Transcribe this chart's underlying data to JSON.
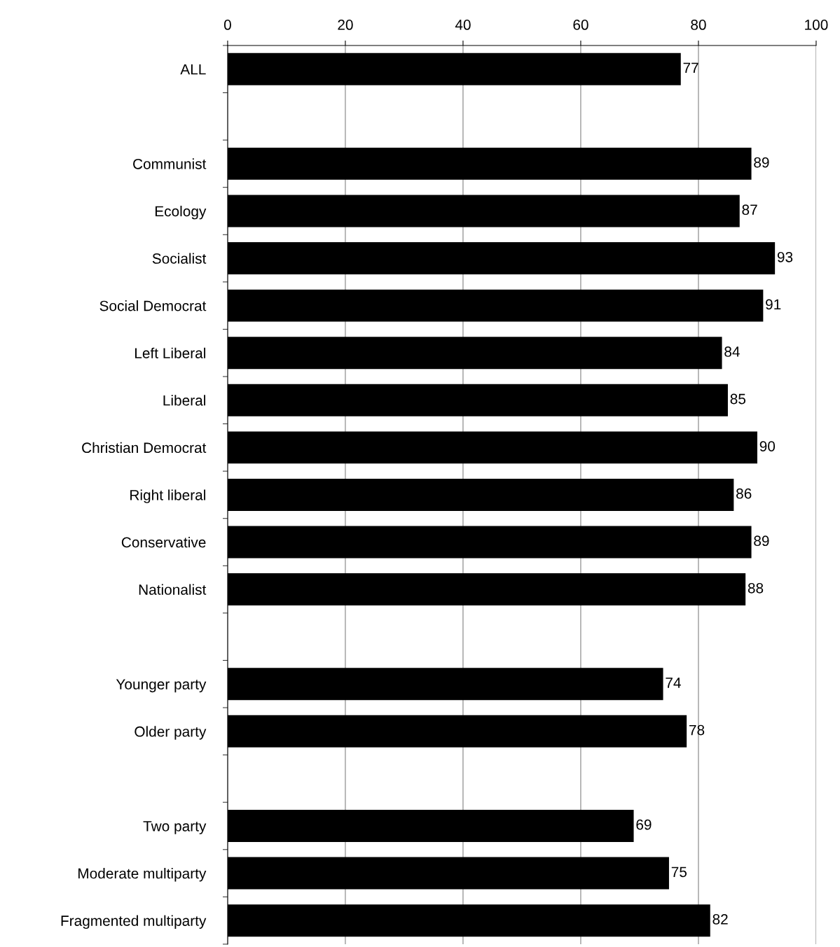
{
  "chart_data": {
    "type": "bar",
    "orientation": "horizontal",
    "categories": [
      "ALL",
      null,
      "Communist",
      "Ecology",
      "Socialist",
      "Social Democrat",
      "Left Liberal",
      "Liberal",
      "Christian Democrat",
      "Right liberal",
      "Conservative",
      "Nationalist",
      null,
      "Younger party",
      "Older party",
      null,
      "Two party",
      "Moderate multiparty",
      "Fragmented multiparty"
    ],
    "values": [
      77,
      null,
      89,
      87,
      93,
      91,
      84,
      85,
      90,
      86,
      89,
      88,
      null,
      74,
      78,
      null,
      69,
      75,
      82
    ],
    "color": "#000000",
    "xlim": [
      0,
      100
    ],
    "xticks": [
      0,
      20,
      40,
      60,
      80,
      100
    ],
    "grid": "x",
    "data_labels": true
  }
}
